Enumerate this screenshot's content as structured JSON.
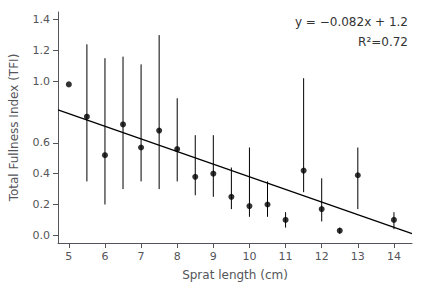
{
  "chart_data": {
    "type": "scatter",
    "x": [
      5.0,
      5.5,
      6.0,
      6.5,
      7.0,
      7.5,
      8.0,
      8.5,
      9.0,
      9.5,
      10.0,
      10.5,
      11.0,
      11.5,
      12.0,
      12.5,
      13.0,
      14.0
    ],
    "values": [
      0.98,
      0.77,
      0.52,
      0.72,
      0.57,
      0.68,
      0.56,
      0.38,
      0.4,
      0.25,
      0.19,
      0.2,
      0.1,
      0.42,
      0.17,
      0.03,
      0.39,
      0.1
    ],
    "yerr_low": [
      0.0,
      0.42,
      0.32,
      0.42,
      0.22,
      0.38,
      0.21,
      0.12,
      0.15,
      0.08,
      0.07,
      0.08,
      0.05,
      0.14,
      0.08,
      0.02,
      0.22,
      0.06
    ],
    "yerr_high": [
      0.0,
      0.47,
      0.63,
      0.44,
      0.54,
      0.62,
      0.33,
      0.27,
      0.25,
      0.19,
      0.38,
      0.15,
      0.05,
      0.6,
      0.2,
      0.02,
      0.18,
      0.05
    ],
    "color": "black",
    "fit_line": {
      "type": "line",
      "x": [
        4.7,
        14.5
      ],
      "values": [
        0.8146,
        0.011
      ],
      "color": "black"
    },
    "annotations": [
      "y = −0.082x + 1.2",
      "R²=0.72"
    ],
    "xlabel": "Sprat length (cm)",
    "ylabel": "Total Fullness Index (TFI)",
    "xlim": [
      4.7,
      14.5
    ],
    "ylim": [
      -0.05,
      1.45
    ],
    "xticks": [
      5,
      6,
      7,
      8,
      9,
      10,
      11,
      12,
      13,
      14
    ],
    "yticks": [
      {
        "value": 0.0,
        "label": "0.0"
      },
      0.2,
      0.4,
      0.6,
      {
        "value": 1.0,
        "label": "1.0"
      },
      1.2,
      1.4
    ],
    "grid": false
  }
}
